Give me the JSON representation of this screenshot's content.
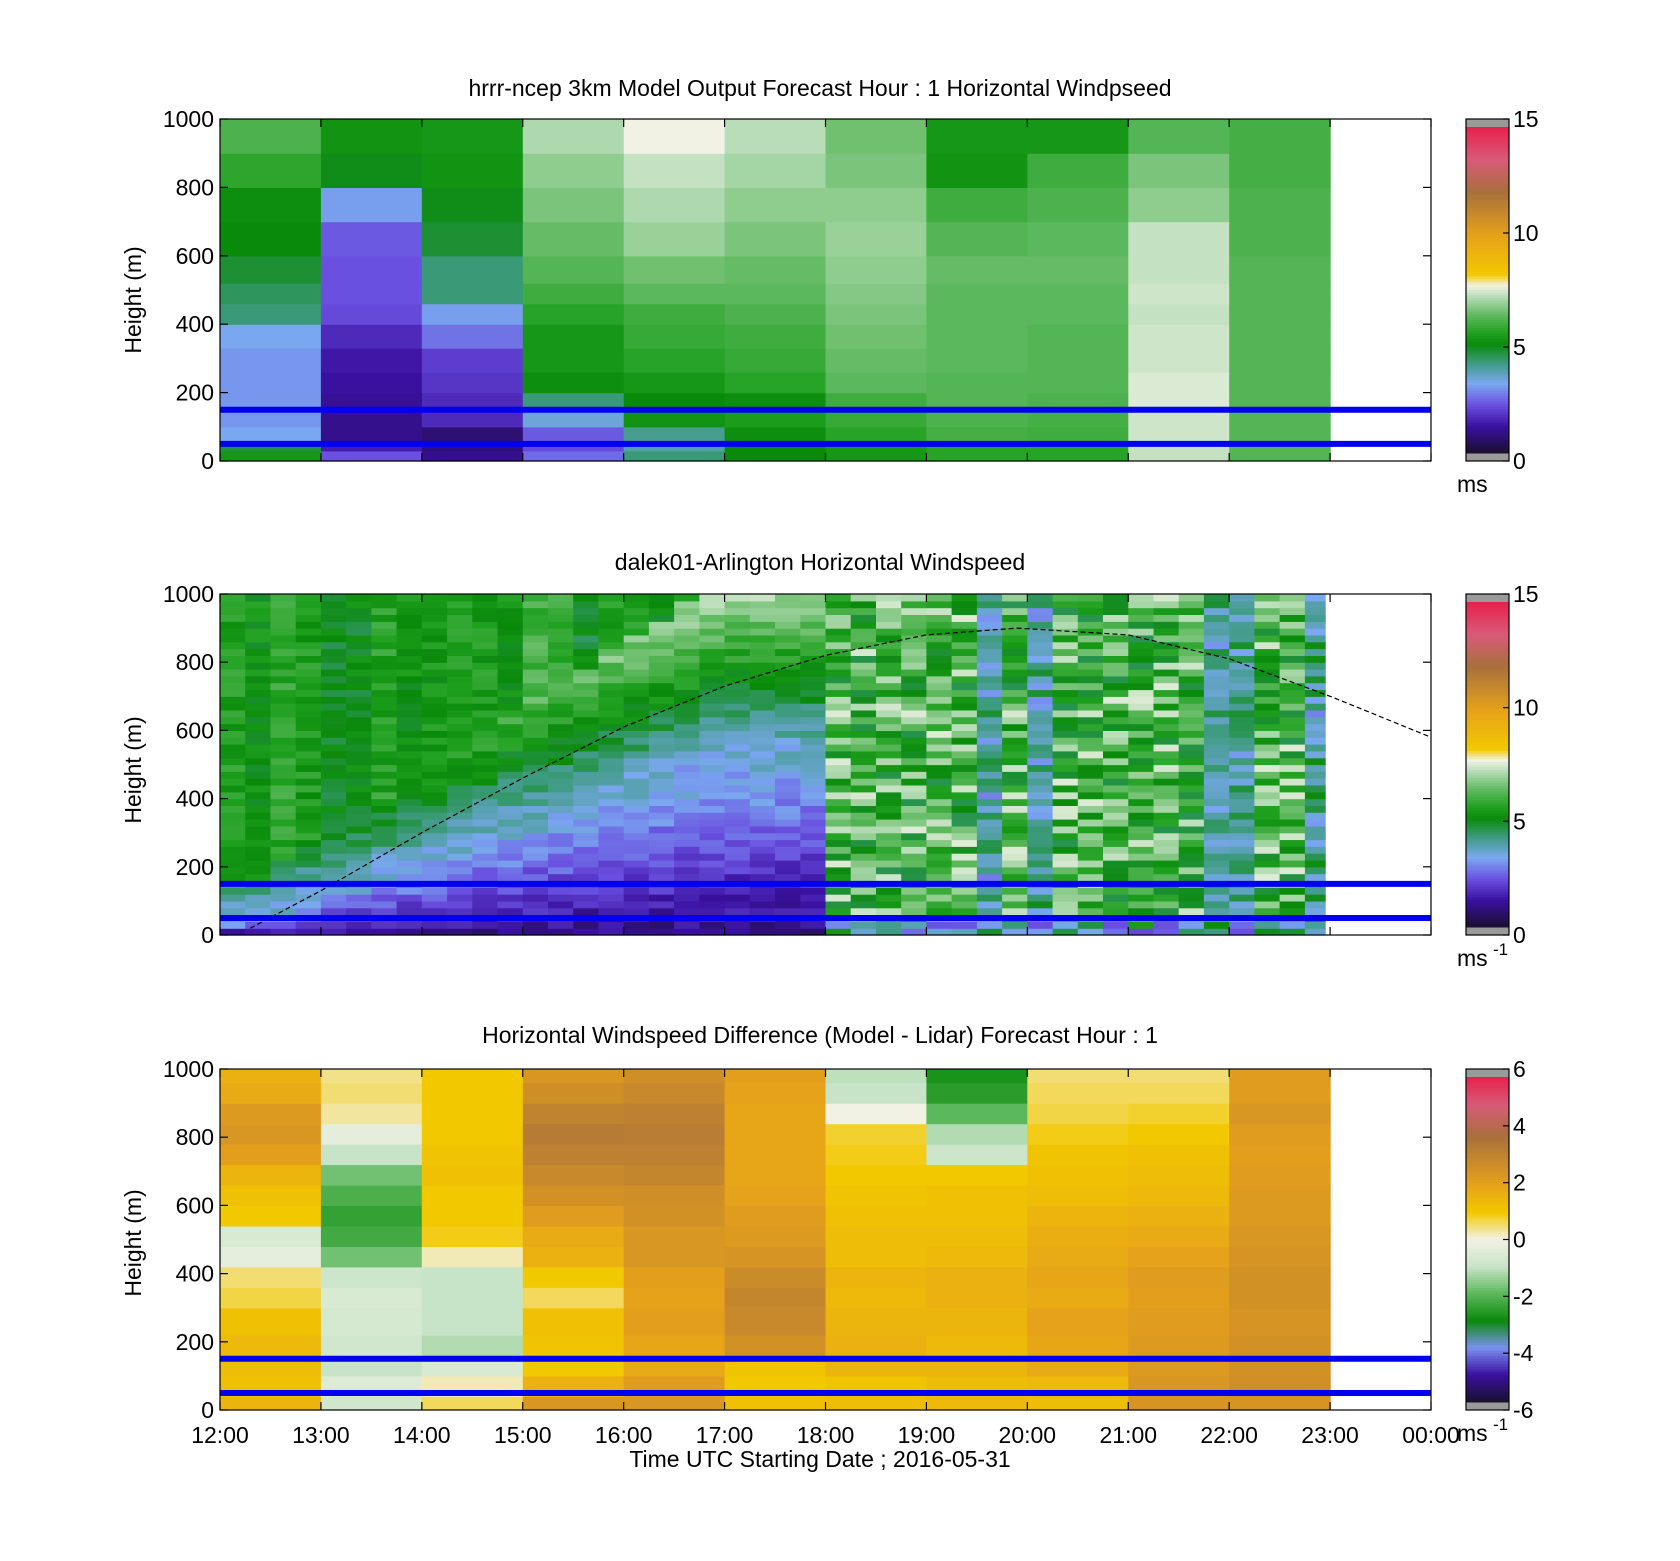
{
  "colors": {
    "background": "#ffffff",
    "reference_line": "#0000ee",
    "missing_data": "#9a9a9a",
    "speed_colormap": [
      "#1a1030",
      "#3a10a0",
      "#6a50e0",
      "#7aa8f0",
      "#3a9a78",
      "#0a8a0a",
      "#1fa01f",
      "#5cb85c",
      "#b8ddb8",
      "#f2f2e4",
      "#f2c800",
      "#e6a21a",
      "#a8703c",
      "#d85a78",
      "#e8204a"
    ],
    "speed_colormap_stops": [
      0,
      1.2,
      2.2,
      3.2,
      4.2,
      5.0,
      5.5,
      6.3,
      7.2,
      7.7,
      8.2,
      10.0,
      12.0,
      13.5,
      15
    ],
    "diff_colormap": [
      "#1a1030",
      "#3a10a0",
      "#7a90f0",
      "#0a8a0a",
      "#5cb85c",
      "#c8e4c8",
      "#f2f2e4",
      "#f2c800",
      "#e6a21a",
      "#a8703c",
      "#d85a78",
      "#e8204a"
    ],
    "diff_colormap_stops": [
      -6,
      -5,
      -4,
      -3,
      -2,
      -1,
      0,
      1,
      2,
      3.8,
      5,
      6
    ]
  },
  "chart_data": [
    {
      "type": "heatmap",
      "title": "hrrr-ncep 3km Model Output   Forecast Hour : 1 Horizontal Windpseed",
      "xlabel": "",
      "ylabel": "Height (m)",
      "xlim": [
        12,
        24
      ],
      "ylim": [
        0,
        1000
      ],
      "x_ticks": [
        "12:00",
        "13:00",
        "14:00",
        "15:00",
        "16:00",
        "17:00",
        "18:00",
        "19:00",
        "20:00",
        "21:00",
        "22:00",
        "23:00",
        "00:00"
      ],
      "x_tick_labels_shown": false,
      "y_ticks": [
        0,
        200,
        400,
        600,
        800,
        1000
      ],
      "colorbar": {
        "ticks": [
          0,
          5,
          10,
          15
        ],
        "range": [
          0,
          15
        ],
        "units_label": "ms",
        "units_sup": ""
      },
      "reference_lines_m": [
        150,
        50
      ],
      "x_hours": [
        12,
        13,
        14,
        15,
        16,
        17,
        18,
        19,
        20,
        21,
        22
      ],
      "height_levels_m": [
        30,
        60,
        100,
        150,
        200,
        260,
        330,
        400,
        460,
        520,
        600,
        700,
        800,
        900,
        1000
      ],
      "windspeed_ms": [
        [
          5.3,
          2.2,
          1.0,
          2.5,
          4.2,
          5.0,
          5.3,
          5.6,
          5.6,
          7.3,
          6.2
        ],
        [
          4.6,
          1.4,
          0.8,
          2.1,
          3.8,
          5.0,
          5.3,
          5.6,
          5.6,
          7.3,
          6.2
        ],
        [
          3.2,
          1.0,
          0.7,
          2.3,
          4.0,
          5.1,
          5.6,
          6.0,
          5.9,
          7.4,
          6.2
        ],
        [
          3.0,
          1.0,
          1.6,
          3.4,
          5.2,
          5.4,
          5.8,
          6.1,
          6.0,
          7.4,
          6.2
        ],
        [
          3.0,
          1.1,
          1.6,
          4.2,
          5.0,
          5.1,
          5.9,
          6.2,
          6.1,
          7.5,
          6.2
        ],
        [
          3.0,
          1.2,
          1.8,
          5.1,
          5.3,
          5.6,
          6.3,
          6.2,
          6.2,
          7.5,
          6.2
        ],
        [
          3.0,
          1.3,
          1.9,
          5.3,
          5.6,
          5.8,
          6.4,
          6.3,
          6.2,
          7.4,
          6.2
        ],
        [
          3.2,
          1.6,
          2.6,
          5.3,
          5.8,
          5.9,
          6.5,
          6.3,
          6.2,
          7.4,
          6.2
        ],
        [
          4.2,
          2.1,
          3.1,
          5.6,
          5.9,
          6.1,
          6.6,
          6.3,
          6.3,
          7.3,
          6.2
        ],
        [
          4.4,
          2.2,
          4.2,
          5.9,
          6.3,
          6.3,
          6.7,
          6.3,
          6.3,
          7.4,
          6.2
        ],
        [
          4.7,
          2.2,
          4.2,
          6.2,
          6.5,
          6.4,
          6.8,
          6.4,
          6.4,
          7.3,
          6.2
        ],
        [
          5.0,
          2.3,
          4.7,
          6.4,
          6.9,
          6.6,
          6.9,
          6.2,
          6.3,
          7.3,
          6.1
        ],
        [
          5.1,
          3.1,
          4.9,
          6.6,
          7.1,
          6.8,
          6.8,
          5.9,
          6.1,
          6.8,
          6.1
        ],
        [
          5.7,
          4.9,
          5.2,
          6.8,
          7.3,
          7.0,
          6.6,
          5.2,
          5.9,
          6.6,
          6.0
        ],
        [
          6.1,
          5.2,
          5.3,
          7.1,
          7.7,
          7.2,
          6.5,
          5.3,
          5.3,
          6.2,
          6.0
        ]
      ]
    },
    {
      "type": "heatmap",
      "title": "dalek01-Arlington  Horizontal Windspeed",
      "xlabel": "",
      "ylabel": "Height (m)",
      "xlim": [
        12,
        24
      ],
      "ylim": [
        0,
        1000
      ],
      "x_ticks": [
        "12:00",
        "13:00",
        "14:00",
        "15:00",
        "16:00",
        "17:00",
        "18:00",
        "19:00",
        "20:00",
        "21:00",
        "22:00",
        "23:00",
        "00:00"
      ],
      "x_tick_labels_shown": false,
      "y_ticks": [
        0,
        200,
        400,
        600,
        800,
        1000
      ],
      "colorbar": {
        "ticks": [
          0,
          5,
          10,
          15
        ],
        "range": [
          0,
          15
        ],
        "units_label": "ms",
        "units_sup": "-1"
      },
      "reference_lines_m": [
        150,
        50
      ],
      "data_end_hour": 22.95,
      "sample_step_hours": 0.25,
      "height_step_m": 20,
      "annotation_curve": {
        "style": "dashed",
        "points": [
          [
            12.3,
            20
          ],
          [
            13.0,
            130
          ],
          [
            14.0,
            300
          ],
          [
            15.0,
            460
          ],
          [
            16.0,
            610
          ],
          [
            17.0,
            730
          ],
          [
            18.0,
            820
          ],
          [
            19.0,
            880
          ],
          [
            19.9,
            900
          ],
          [
            21.0,
            880
          ],
          [
            22.0,
            810
          ],
          [
            23.0,
            700
          ],
          [
            24.0,
            580
          ]
        ]
      }
    },
    {
      "type": "heatmap",
      "title": "Horizontal Windspeed Difference (Model - Lidar) Forecast Hour : 1",
      "xlabel": "Time UTC  Starting Date ; 2016-05-31",
      "ylabel": "Height (m)",
      "xlim": [
        12,
        24
      ],
      "ylim": [
        0,
        1000
      ],
      "x_ticks": [
        "12:00",
        "13:00",
        "14:00",
        "15:00",
        "16:00",
        "17:00",
        "18:00",
        "19:00",
        "20:00",
        "21:00",
        "22:00",
        "23:00",
        "00:00"
      ],
      "x_tick_labels_shown": true,
      "y_ticks": [
        0,
        200,
        400,
        600,
        800,
        1000
      ],
      "colorbar": {
        "ticks": [
          -6,
          -4,
          -2,
          0,
          2,
          4,
          6
        ],
        "range": [
          -6,
          6
        ],
        "units_label": "ms",
        "units_sup": "-1"
      },
      "reference_lines_m": [
        150,
        50
      ],
      "x_hours": [
        12,
        13,
        14,
        15,
        16,
        17,
        18,
        19,
        20,
        21,
        22
      ],
      "height_levels_m": [
        40,
        100,
        160,
        220,
        300,
        360,
        420,
        480,
        540,
        600,
        660,
        720,
        780,
        840,
        900,
        960,
        1000
      ],
      "difference_ms": [
        [
          1.5,
          -0.8,
          0.6,
          2.4,
          2.4,
          1.2,
          1.3,
          1.4,
          1.3,
          2.5,
          2.5
        ],
        [
          1.2,
          -0.5,
          0.2,
          1.6,
          2.2,
          1.0,
          1.1,
          1.3,
          1.4,
          2.4,
          2.7
        ],
        [
          1.3,
          -1.0,
          -0.6,
          1.0,
          1.8,
          1.1,
          1.5,
          1.5,
          1.8,
          2.3,
          2.6
        ],
        [
          1.4,
          -0.8,
          -1.2,
          1.1,
          1.9,
          2.6,
          1.6,
          1.4,
          1.9,
          2.3,
          2.6
        ],
        [
          1.2,
          -0.7,
          -1.0,
          1.2,
          2.1,
          2.9,
          1.5,
          1.5,
          2.0,
          2.2,
          2.5
        ],
        [
          0.7,
          -0.6,
          -1.0,
          0.6,
          2.0,
          3.0,
          1.4,
          1.6,
          1.8,
          2.1,
          2.6
        ],
        [
          0.5,
          -0.9,
          -1.0,
          1.0,
          2.1,
          2.8,
          1.5,
          1.6,
          1.9,
          2.2,
          2.6
        ],
        [
          -0.3,
          -1.8,
          0.2,
          1.6,
          2.4,
          2.5,
          1.3,
          1.4,
          1.8,
          2.0,
          2.5
        ],
        [
          -0.6,
          -2.3,
          0.9,
          1.8,
          2.4,
          2.3,
          1.3,
          1.3,
          1.7,
          1.8,
          2.4
        ],
        [
          1.0,
          -2.5,
          1.0,
          2.2,
          2.6,
          2.2,
          1.2,
          1.2,
          1.5,
          1.6,
          2.3
        ],
        [
          1.2,
          -2.2,
          1.0,
          2.6,
          2.7,
          2.0,
          1.1,
          1.2,
          1.3,
          1.4,
          2.3
        ],
        [
          1.5,
          -1.8,
          1.2,
          2.9,
          3.0,
          1.9,
          1.0,
          1.0,
          1.2,
          1.3,
          2.2
        ],
        [
          2.1,
          -1.0,
          1.1,
          3.2,
          3.2,
          1.9,
          0.9,
          -0.9,
          1.1,
          1.2,
          2.1
        ],
        [
          2.4,
          -0.3,
          1.0,
          3.4,
          3.3,
          1.9,
          0.8,
          -1.2,
          0.9,
          1.0,
          2.2
        ],
        [
          2.3,
          0.3,
          1.0,
          3.1,
          3.2,
          1.9,
          0.0,
          -2.0,
          0.7,
          0.8,
          2.4
        ],
        [
          1.8,
          0.5,
          1.0,
          2.7,
          2.9,
          2.0,
          -1.0,
          -2.6,
          0.6,
          0.6,
          2.2
        ],
        [
          1.6,
          0.4,
          1.0,
          2.4,
          2.7,
          2.1,
          -1.1,
          -2.8,
          0.5,
          0.5,
          2.2
        ]
      ]
    }
  ]
}
